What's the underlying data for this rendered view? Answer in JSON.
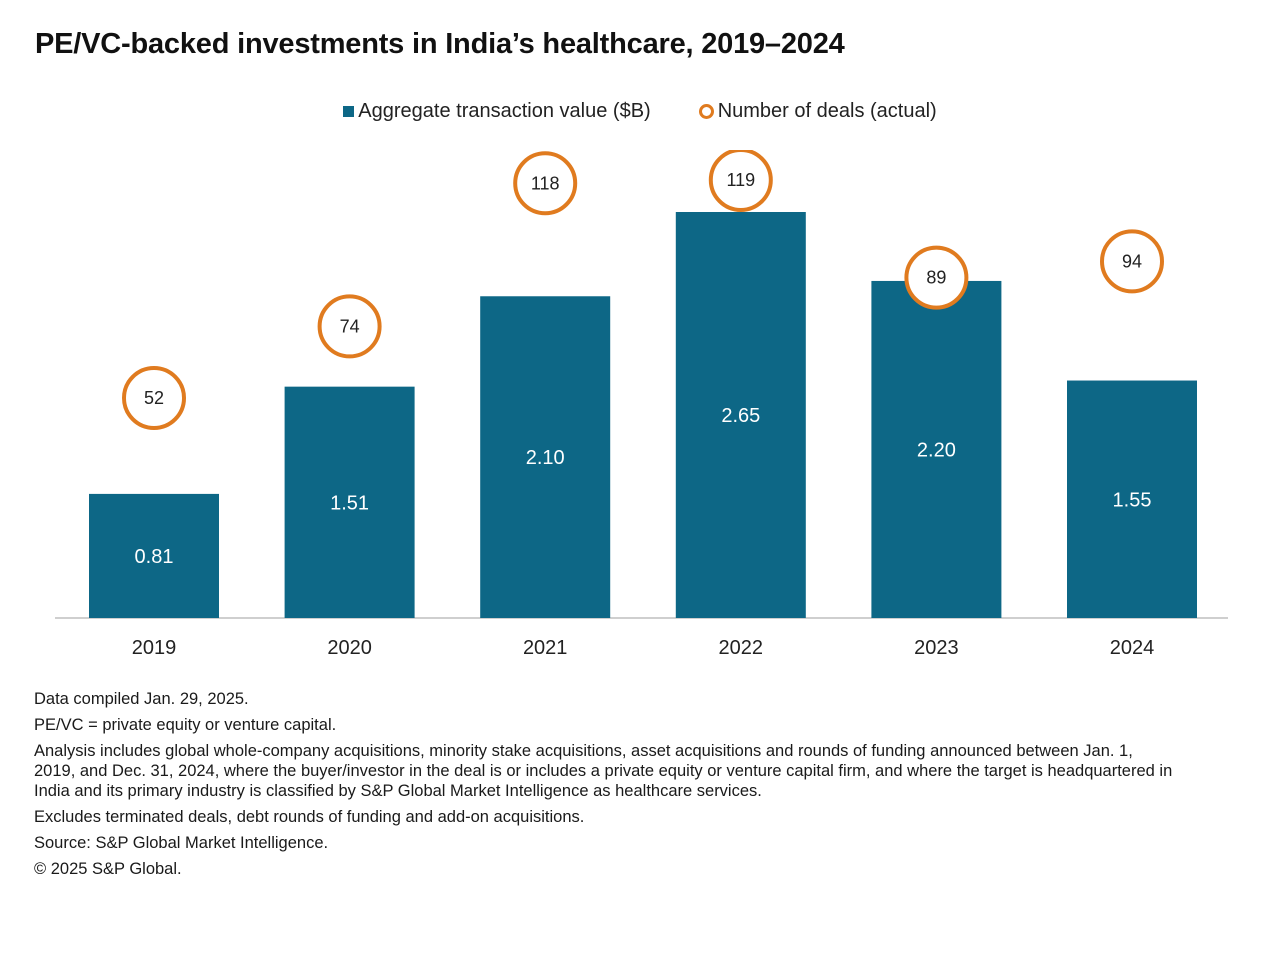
{
  "title": "PE/VC-backed investments in India’s healthcare, 2019–2024",
  "legend": {
    "bar_label": "Aggregate transaction value ($B)",
    "deals_label": "Number of deals (actual)"
  },
  "colors": {
    "bar": "#0d6786",
    "deal_ring": "#e07b1f",
    "axis": "#bfbfbf"
  },
  "chart_data": {
    "type": "bar",
    "categories": [
      "2019",
      "2020",
      "2021",
      "2022",
      "2023",
      "2024"
    ],
    "series": [
      {
        "name": "Aggregate transaction value ($B)",
        "values": [
          0.81,
          1.51,
          2.1,
          2.65,
          2.2,
          1.55
        ],
        "labels": [
          "0.81",
          "1.51",
          "2.10",
          "2.65",
          "2.20",
          "1.55"
        ]
      },
      {
        "name": "Number of deals (actual)",
        "values": [
          52,
          74,
          118,
          119,
          89,
          94
        ],
        "labels": [
          "52",
          "74",
          "118",
          "119",
          "89",
          "94"
        ]
      }
    ],
    "ylim_value": [
      0,
      2.65
    ],
    "ylim_deals": [
      0,
      135
    ],
    "grid": false,
    "legend_position": "top-center"
  },
  "notes": {
    "compiled": "Data compiled Jan. 29, 2025.",
    "definition": "PE/VC = private equity or venture capital.",
    "analysis": "Analysis includes global whole-company acquisitions, minority stake acquisitions, asset acquisitions and rounds of funding announced between Jan. 1, 2019, and Dec. 31, 2024, where the buyer/investor in the deal is or includes a private equity or venture capital firm, and where the target is headquartered in India and its primary industry is classified by S&P Global Market Intelligence as healthcare services.",
    "excludes": "Excludes terminated deals, debt rounds of funding and add-on acquisitions.",
    "source": "Source: S&P Global Market Intelligence.",
    "copyright": "© 2025 S&P Global."
  }
}
